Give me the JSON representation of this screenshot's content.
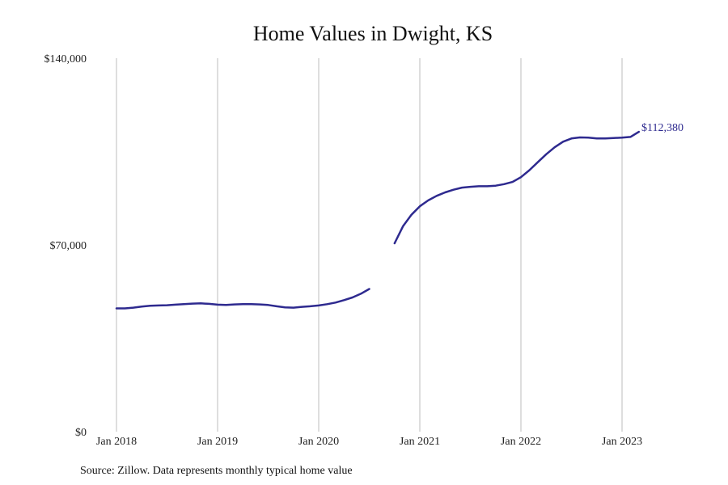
{
  "chart_data": {
    "type": "line",
    "title": "Home Values in Dwight, KS",
    "source_note": "Source: Zillow. Data represents monthly typical home value",
    "xlabel": "",
    "ylabel": "",
    "x_tick_labels": [
      "Jan 2018",
      "Jan 2019",
      "Jan 2020",
      "Jan 2021",
      "Jan 2022",
      "Jan 2023"
    ],
    "y_tick_labels": [
      "$0",
      "$70,000",
      "$140,000"
    ],
    "y_ticks": [
      0,
      70000,
      140000
    ],
    "ylim": [
      0,
      140000
    ],
    "x_range": [
      "2017-10",
      "2023-06"
    ],
    "grid": "vertical lines at January of each year",
    "line_color": "#2e2a8f",
    "grid_color": "#bdbdbd",
    "end_label": "$112,380",
    "series": [
      {
        "segments": [
          [
            [
              "2018-01",
              46200
            ],
            [
              "2018-02",
              46200
            ],
            [
              "2018-03",
              46500
            ],
            [
              "2018-04",
              46900
            ],
            [
              "2018-05",
              47200
            ],
            [
              "2018-06",
              47300
            ],
            [
              "2018-07",
              47400
            ],
            [
              "2018-08",
              47600
            ],
            [
              "2018-09",
              47800
            ],
            [
              "2018-10",
              48000
            ],
            [
              "2018-11",
              48100
            ],
            [
              "2018-12",
              47900
            ],
            [
              "2019-01",
              47600
            ],
            [
              "2019-02",
              47500
            ],
            [
              "2019-03",
              47700
            ],
            [
              "2019-04",
              47800
            ],
            [
              "2019-05",
              47800
            ],
            [
              "2019-06",
              47700
            ],
            [
              "2019-07",
              47500
            ],
            [
              "2019-08",
              47000
            ],
            [
              "2019-09",
              46600
            ],
            [
              "2019-10",
              46500
            ],
            [
              "2019-11",
              46800
            ],
            [
              "2019-12",
              47000
            ],
            [
              "2020-01",
              47300
            ],
            [
              "2020-02",
              47800
            ],
            [
              "2020-03",
              48400
            ],
            [
              "2020-04",
              49300
            ],
            [
              "2020-05",
              50300
            ],
            [
              "2020-06",
              51700
            ],
            [
              "2020-07",
              53500
            ]
          ],
          [
            [
              "2020-10",
              70600
            ],
            [
              "2020-11",
              77000
            ],
            [
              "2020-12",
              81300
            ],
            [
              "2021-01",
              84500
            ],
            [
              "2021-02",
              86700
            ],
            [
              "2021-03",
              88400
            ],
            [
              "2021-04",
              89700
            ],
            [
              "2021-05",
              90700
            ],
            [
              "2021-06",
              91500
            ],
            [
              "2021-07",
              91800
            ],
            [
              "2021-08",
              92000
            ],
            [
              "2021-09",
              92000
            ],
            [
              "2021-10",
              92200
            ],
            [
              "2021-11",
              92800
            ],
            [
              "2021-12",
              93600
            ],
            [
              "2022-01",
              95400
            ],
            [
              "2022-02",
              98000
            ],
            [
              "2022-03",
              101000
            ],
            [
              "2022-04",
              104000
            ],
            [
              "2022-05",
              106600
            ],
            [
              "2022-06",
              108700
            ],
            [
              "2022-07",
              109900
            ],
            [
              "2022-08",
              110300
            ],
            [
              "2022-09",
              110200
            ],
            [
              "2022-10",
              109900
            ],
            [
              "2022-11",
              109900
            ],
            [
              "2022-12",
              110100
            ],
            [
              "2023-01",
              110200
            ],
            [
              "2023-02",
              110500
            ],
            [
              "2023-03",
              112380
            ]
          ]
        ]
      }
    ]
  }
}
